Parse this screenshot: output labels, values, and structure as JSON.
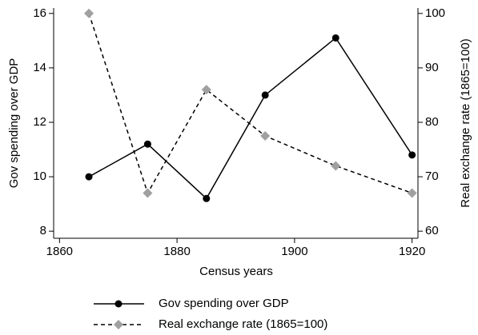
{
  "chart_data": {
    "type": "line",
    "x": [
      1865,
      1875,
      1885,
      1895,
      1907,
      1920
    ],
    "xlabel": "Census years",
    "ylabel": "Gov spending over GDP",
    "y2label": "Real exchange rate (1865=100)",
    "xlim": [
      1859,
      1921
    ],
    "xticks": [
      1860,
      1880,
      1900,
      1920
    ],
    "ylim": [
      7.74,
      16.2
    ],
    "yticks": [
      8,
      10,
      12,
      14,
      16
    ],
    "y2lim": [
      58.7,
      101
    ],
    "y2ticks": [
      60,
      70,
      80,
      90,
      100
    ],
    "legend": "bottom",
    "series": [
      {
        "name": "Gov spending over GDP",
        "color": "#000000",
        "marker": "circle",
        "dash": "solid",
        "values": [
          10,
          11.2,
          9.2,
          13,
          15.1,
          10.8
        ]
      },
      {
        "name": "Real exchange rate (1865=100)",
        "color": "#a0a0a0",
        "marker": "diamond",
        "dash": "dashed",
        "axis": "y2",
        "values": [
          100,
          67,
          86,
          77.5,
          72,
          67
        ]
      }
    ]
  }
}
